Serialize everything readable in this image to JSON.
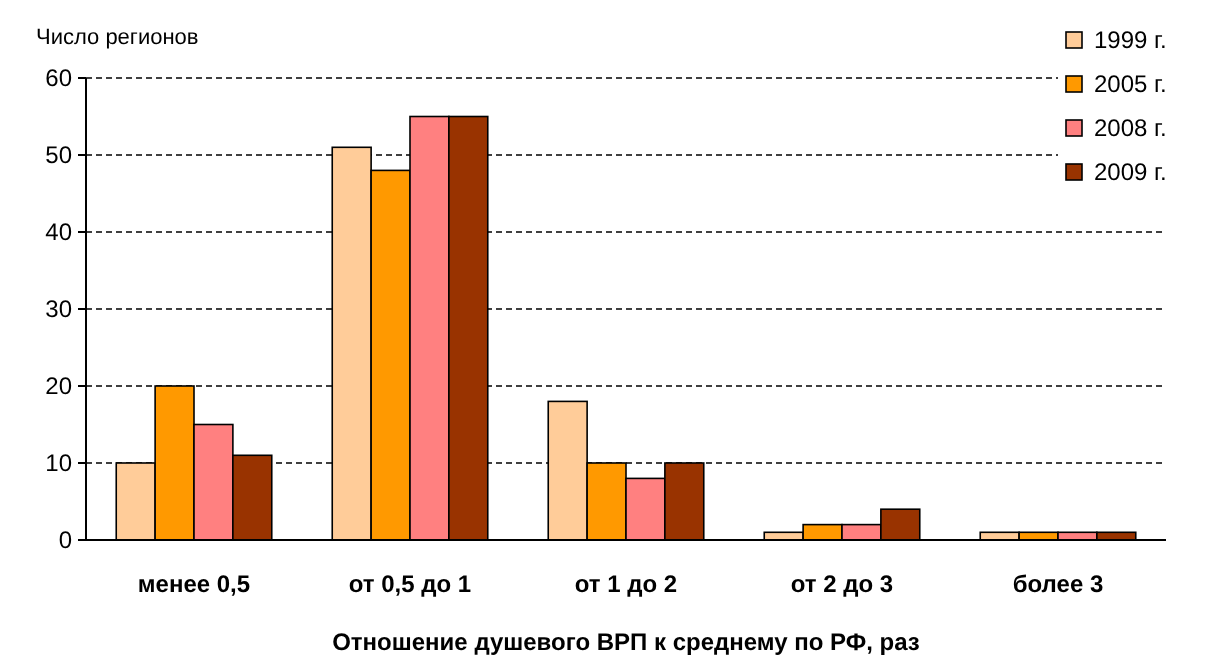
{
  "chart_data": {
    "type": "bar",
    "ylabel": "Число регионов",
    "xlabel": "Отношение душевого ВРП к среднему по РФ, раз",
    "categories": [
      "менее 0,5",
      "от 0,5 до 1",
      "от 1 до 2",
      "от 2 до 3",
      "более 3"
    ],
    "series": [
      {
        "name": "1999 г.",
        "color": "#ffcc99",
        "values": [
          10,
          51,
          18,
          1,
          1
        ]
      },
      {
        "name": "2005 г.",
        "color": "#ff9900",
        "values": [
          20,
          48,
          10,
          2,
          1
        ]
      },
      {
        "name": "2008 г.",
        "color": "#ff8080",
        "values": [
          15,
          55,
          8,
          2,
          1
        ]
      },
      {
        "name": "2009 г.",
        "color": "#993300",
        "values": [
          11,
          55,
          10,
          4,
          1
        ]
      }
    ],
    "ylim": [
      0,
      60
    ],
    "yticks": [
      0,
      10,
      20,
      30,
      40,
      50,
      60
    ],
    "grid": "y",
    "legend": "top right"
  }
}
